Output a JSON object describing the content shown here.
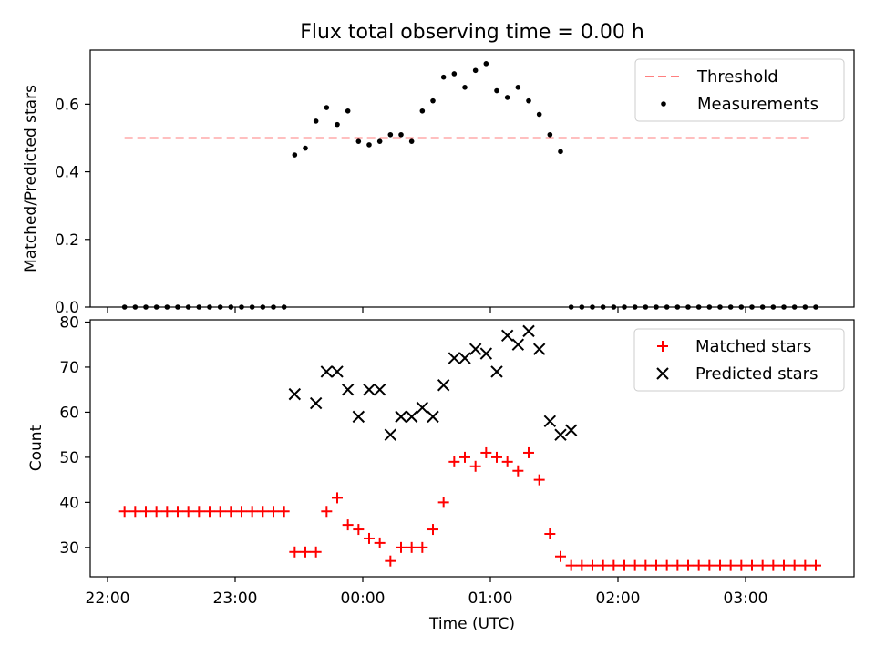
{
  "chart_data": [
    {
      "type": "scatter",
      "title": "Flux total observing time = 0.00 h",
      "ylabel": "Matched/Predicted stars",
      "xlabel": "",
      "ylim": [
        0,
        0.76
      ],
      "yticks": [
        0.0,
        0.2,
        0.4,
        0.6
      ],
      "ytick_labels": [
        "0.0",
        "0.2",
        "0.4",
        "0.6"
      ],
      "legend_position": "top-right",
      "threshold": {
        "name": "Threshold",
        "color": "#ff7f7f",
        "y": 0.5,
        "x_start": "22:08",
        "x_end": "03:32"
      },
      "series": [
        {
          "name": "Measurements",
          "color": "#000000",
          "marker": "dot",
          "x": [
            "22:08",
            "22:13",
            "22:18",
            "22:23",
            "22:28",
            "22:33",
            "22:38",
            "22:43",
            "22:48",
            "22:53",
            "22:58",
            "23:03",
            "23:08",
            "23:13",
            "23:18",
            "23:23",
            "23:28",
            "23:33",
            "23:38",
            "23:43",
            "23:48",
            "23:53",
            "23:58",
            "00:03",
            "00:08",
            "00:13",
            "00:18",
            "00:23",
            "00:28",
            "00:33",
            "00:38",
            "00:43",
            "00:48",
            "00:53",
            "00:58",
            "01:03",
            "01:08",
            "01:13",
            "01:18",
            "01:23",
            "01:28",
            "01:33",
            "01:38",
            "01:43",
            "01:48",
            "01:53",
            "01:58",
            "02:03",
            "02:08",
            "02:13",
            "02:18",
            "02:23",
            "02:28",
            "02:33",
            "02:38",
            "02:43",
            "02:48",
            "02:53",
            "02:58",
            "03:03",
            "03:08",
            "03:13",
            "03:18",
            "03:23",
            "03:28",
            "03:33"
          ],
          "y": [
            0,
            0,
            0,
            0,
            0,
            0,
            0,
            0,
            0,
            0,
            0,
            0,
            0,
            0,
            0,
            0,
            0.45,
            0.47,
            0.55,
            0.59,
            0.54,
            0.58,
            0.49,
            0.48,
            0.49,
            0.51,
            0.51,
            0.49,
            0.58,
            0.61,
            0.68,
            0.69,
            0.65,
            0.7,
            0.72,
            0.64,
            0.62,
            0.65,
            0.61,
            0.57,
            0.51,
            0.46,
            0,
            0,
            0,
            0,
            0,
            0,
            0,
            0,
            0,
            0,
            0,
            0,
            0,
            0,
            0,
            0,
            0,
            0,
            0,
            0,
            0,
            0,
            0,
            0
          ]
        }
      ]
    },
    {
      "type": "scatter",
      "title": "",
      "ylabel": "Count",
      "xlabel": "Time (UTC)",
      "ylim": [
        23.5,
        80.5
      ],
      "yticks": [
        30,
        40,
        50,
        60,
        70,
        80
      ],
      "ytick_labels": [
        "30",
        "40",
        "50",
        "60",
        "70",
        "80"
      ],
      "xticks": [
        "22:00",
        "23:00",
        "00:00",
        "01:00",
        "02:00",
        "03:00"
      ],
      "legend_position": "top-right",
      "series": [
        {
          "name": "Matched stars",
          "color": "#ff0000",
          "marker": "plus",
          "x": [
            "22:08",
            "22:13",
            "22:18",
            "22:23",
            "22:28",
            "22:33",
            "22:38",
            "22:43",
            "22:48",
            "22:53",
            "22:58",
            "23:03",
            "23:08",
            "23:13",
            "23:18",
            "23:23",
            "23:28",
            "23:33",
            "23:38",
            "23:43",
            "23:48",
            "23:53",
            "23:58",
            "00:03",
            "00:08",
            "00:13",
            "00:18",
            "00:23",
            "00:28",
            "00:33",
            "00:38",
            "00:43",
            "00:48",
            "00:53",
            "00:58",
            "01:03",
            "01:08",
            "01:13",
            "01:18",
            "01:23",
            "01:28",
            "01:33",
            "01:38",
            "01:43",
            "01:48",
            "01:53",
            "01:58",
            "02:03",
            "02:08",
            "02:13",
            "02:18",
            "02:23",
            "02:28",
            "02:33",
            "02:38",
            "02:43",
            "02:48",
            "02:53",
            "02:58",
            "03:03",
            "03:08",
            "03:13",
            "03:18",
            "03:23",
            "03:28",
            "03:33"
          ],
          "y": [
            38,
            38,
            38,
            38,
            38,
            38,
            38,
            38,
            38,
            38,
            38,
            38,
            38,
            38,
            38,
            38,
            29,
            29,
            29,
            38,
            41,
            35,
            34,
            32,
            31,
            27,
            30,
            30,
            30,
            34,
            40,
            49,
            50,
            48,
            51,
            50,
            49,
            47,
            51,
            45,
            33,
            28,
            26,
            26,
            26,
            26,
            26,
            26,
            26,
            26,
            26,
            26,
            26,
            26,
            26,
            26,
            26,
            26,
            26,
            26,
            26,
            26,
            26,
            26,
            26,
            26
          ]
        },
        {
          "name": "Predicted stars",
          "color": "#000000",
          "marker": "x",
          "x": [
            "23:28",
            "23:38",
            "23:43",
            "23:48",
            "23:53",
            "23:58",
            "00:03",
            "00:08",
            "00:13",
            "00:18",
            "00:23",
            "00:28",
            "00:33",
            "00:38",
            "00:43",
            "00:48",
            "00:53",
            "00:58",
            "01:03",
            "01:08",
            "01:13",
            "01:18",
            "01:23",
            "01:28",
            "01:33",
            "01:38"
          ],
          "y": [
            64,
            62,
            69,
            69,
            65,
            59,
            65,
            65,
            55,
            59,
            59,
            61,
            59,
            66,
            72,
            72,
            74,
            73,
            69,
            77,
            75,
            78,
            74,
            58,
            55,
            56
          ]
        }
      ]
    }
  ]
}
